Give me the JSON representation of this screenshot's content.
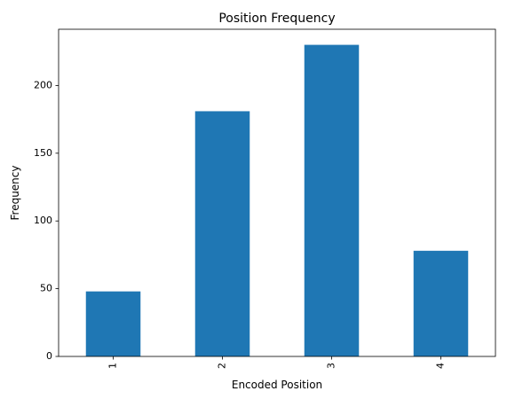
{
  "chart_data": {
    "type": "bar",
    "title": "Position Frequency",
    "xlabel": "Encoded Position",
    "ylabel": "Frequency",
    "categories": [
      "1",
      "2",
      "3",
      "4"
    ],
    "values": [
      48,
      181,
      230,
      78
    ],
    "ylim": [
      0,
      241.5
    ],
    "yticks": [
      0,
      50,
      100,
      150,
      200
    ],
    "grid": false,
    "bar_color": "#1f77b4",
    "xtick_rotation": 90
  }
}
